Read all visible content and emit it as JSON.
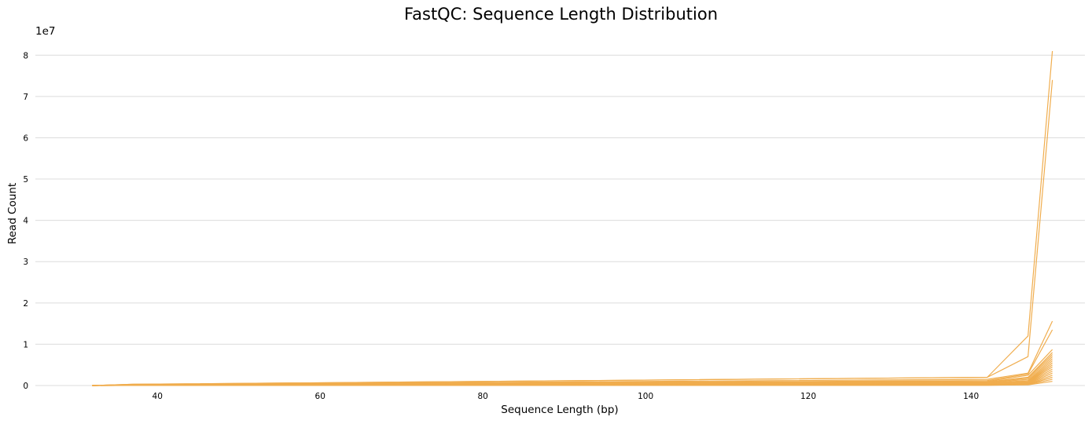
{
  "chart_data": {
    "type": "line",
    "title": "FastQC: Sequence Length Distribution",
    "xlabel": "Sequence Length (bp)",
    "ylabel": "Read Count",
    "y_scale_label": "1e7",
    "xlim": [
      25,
      154
    ],
    "ylim": [
      0,
      85000000
    ],
    "x_ticks": [
      40,
      60,
      80,
      100,
      120,
      140
    ],
    "y_ticks": [
      0,
      10000000,
      20000000,
      30000000,
      40000000,
      50000000,
      60000000,
      70000000,
      80000000
    ],
    "y_tick_labels": [
      "0",
      "1",
      "2",
      "3",
      "4",
      "5",
      "6",
      "7",
      "8"
    ],
    "grid": "horizontal",
    "legend": "none",
    "line_color": "#f0ad4e",
    "series": [
      {
        "x": [
          32,
          37,
          142,
          147,
          150
        ],
        "y": [
          0,
          300000,
          2000000,
          12000000,
          81000000
        ]
      },
      {
        "x": [
          32,
          37,
          142,
          147,
          150
        ],
        "y": [
          0,
          300000,
          2000000,
          7000000,
          74000000
        ]
      },
      {
        "x": [
          32,
          37,
          142,
          147,
          150
        ],
        "y": [
          0,
          250000,
          1500000,
          3000000,
          15600000
        ]
      },
      {
        "x": [
          32,
          37,
          142,
          147,
          150
        ],
        "y": [
          0,
          250000,
          1200000,
          2800000,
          13500000
        ]
      },
      {
        "x": [
          32,
          37,
          142,
          147,
          150
        ],
        "y": [
          0,
          200000,
          1000000,
          2500000,
          8700000
        ]
      },
      {
        "x": [
          32,
          37,
          142,
          147,
          150
        ],
        "y": [
          0,
          200000,
          900000,
          2000000,
          8000000
        ]
      },
      {
        "x": [
          32,
          37,
          142,
          147,
          150
        ],
        "y": [
          0,
          180000,
          800000,
          1800000,
          7500000
        ]
      },
      {
        "x": [
          32,
          37,
          142,
          147,
          150
        ],
        "y": [
          0,
          150000,
          700000,
          1500000,
          7000000
        ]
      },
      {
        "x": [
          32,
          37,
          142,
          147,
          150
        ],
        "y": [
          0,
          150000,
          600000,
          1200000,
          6500000
        ]
      },
      {
        "x": [
          32,
          37,
          142,
          147,
          150
        ],
        "y": [
          0,
          120000,
          500000,
          1000000,
          6000000
        ]
      },
      {
        "x": [
          32,
          37,
          142,
          147,
          150
        ],
        "y": [
          0,
          100000,
          400000,
          900000,
          5500000
        ]
      },
      {
        "x": [
          32,
          37,
          142,
          147,
          150
        ],
        "y": [
          0,
          100000,
          350000,
          800000,
          5000000
        ]
      },
      {
        "x": [
          32,
          37,
          142,
          147,
          150
        ],
        "y": [
          0,
          80000,
          300000,
          700000,
          4500000
        ]
      },
      {
        "x": [
          32,
          37,
          142,
          147,
          150
        ],
        "y": [
          0,
          80000,
          250000,
          600000,
          4000000
        ]
      },
      {
        "x": [
          32,
          37,
          142,
          147,
          150
        ],
        "y": [
          0,
          60000,
          200000,
          500000,
          3500000
        ]
      },
      {
        "x": [
          32,
          37,
          142,
          147,
          150
        ],
        "y": [
          0,
          60000,
          150000,
          400000,
          3000000
        ]
      },
      {
        "x": [
          32,
          37,
          142,
          147,
          150
        ],
        "y": [
          0,
          40000,
          120000,
          300000,
          2500000
        ]
      },
      {
        "x": [
          32,
          37,
          142,
          147,
          150
        ],
        "y": [
          0,
          40000,
          100000,
          250000,
          2000000
        ]
      },
      {
        "x": [
          32,
          37,
          142,
          147,
          150
        ],
        "y": [
          0,
          30000,
          80000,
          200000,
          1500000
        ]
      },
      {
        "x": [
          32,
          37,
          142,
          147,
          150
        ],
        "y": [
          0,
          20000,
          50000,
          150000,
          1000000
        ]
      }
    ]
  }
}
